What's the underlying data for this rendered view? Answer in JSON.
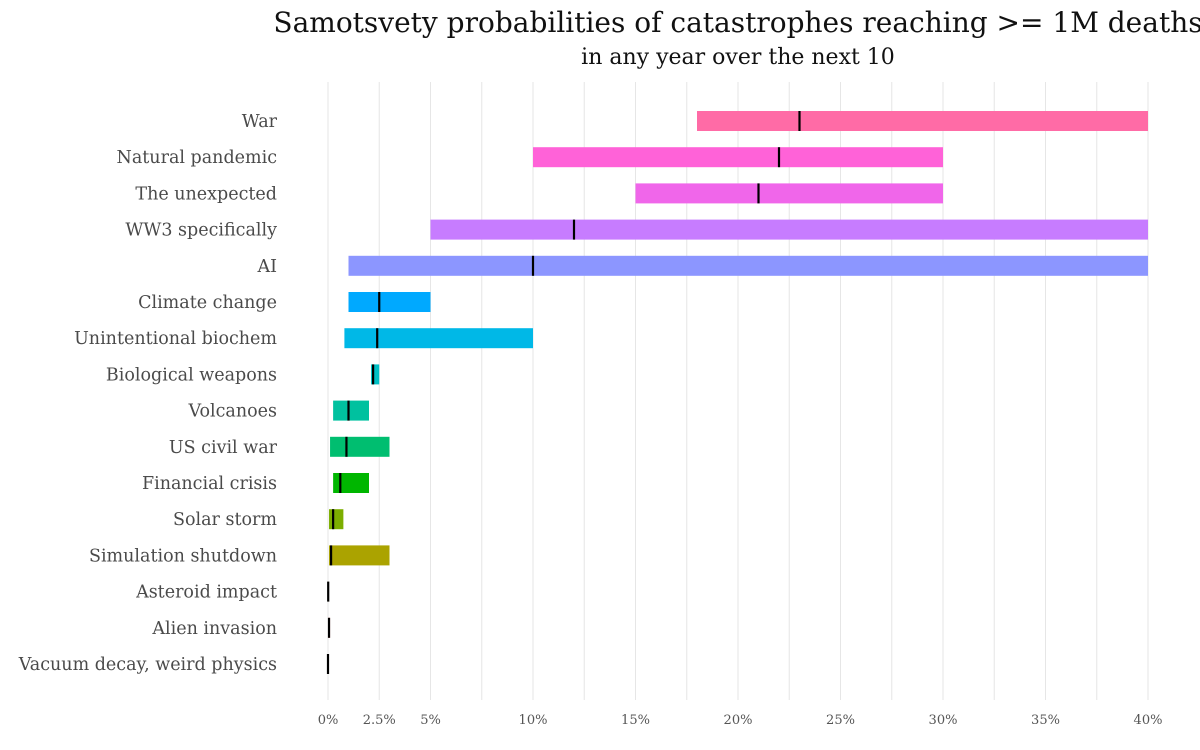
{
  "chart_data": {
    "type": "bar",
    "title": "Samotsvety probabilities of catastrophes reaching >= 1M deaths",
    "subtitle": "in any year over the next 10",
    "xlabel": "",
    "ylabel": "",
    "xlim": [
      0,
      40
    ],
    "grid": true,
    "x_ticks": [
      {
        "value": 0,
        "label": "0%"
      },
      {
        "value": 2.5,
        "label": "2.5%"
      },
      {
        "value": 5,
        "label": "5%"
      },
      {
        "value": 10,
        "label": "10%"
      },
      {
        "value": 15,
        "label": "15%"
      },
      {
        "value": 20,
        "label": "20%"
      },
      {
        "value": 25,
        "label": "25%"
      },
      {
        "value": 30,
        "label": "30%"
      },
      {
        "value": 35,
        "label": "35%"
      },
      {
        "value": 40,
        "label": "40%"
      }
    ],
    "minor_gridlines": [
      7.5,
      12.5,
      17.5,
      22.5,
      27.5,
      32.5,
      37.5
    ],
    "categories": [
      {
        "label": "War",
        "low": 18,
        "high": 40,
        "median": 23,
        "color": "#ff6ba6"
      },
      {
        "label": "Natural pandemic",
        "low": 10,
        "high": 30,
        "median": 22,
        "color": "#ff62d8"
      },
      {
        "label": "The unexpected",
        "low": 15,
        "high": 30,
        "median": 21,
        "color": "#f066ea"
      },
      {
        "label": "WW3 specifically",
        "low": 5,
        "high": 40,
        "median": 12,
        "color": "#c77cff"
      },
      {
        "label": "AI",
        "low": 1,
        "high": 40,
        "median": 10,
        "color": "#8c96ff"
      },
      {
        "label": "Climate change",
        "low": 1,
        "high": 5,
        "median": 2.5,
        "color": "#00a9ff"
      },
      {
        "label": "Unintentional biochem",
        "low": 0.8,
        "high": 10,
        "median": 2.4,
        "color": "#00b8e7"
      },
      {
        "label": "Biological weapons",
        "low": 2.1,
        "high": 2.5,
        "median": 2.2,
        "color": "#00bfc4"
      },
      {
        "label": "Volcanoes",
        "low": 0.25,
        "high": 2,
        "median": 1,
        "color": "#00c19f"
      },
      {
        "label": "US civil war",
        "low": 0.1,
        "high": 3,
        "median": 0.9,
        "color": "#00be70"
      },
      {
        "label": "Financial crisis",
        "low": 0.25,
        "high": 2,
        "median": 0.6,
        "color": "#00b600"
      },
      {
        "label": "Solar storm",
        "low": 0.05,
        "high": 0.75,
        "median": 0.25,
        "color": "#7cae00"
      },
      {
        "label": "Simulation shutdown",
        "low": 0.05,
        "high": 3,
        "median": 0.15,
        "color": "#aba300"
      },
      {
        "label": "Asteroid impact",
        "low": 0,
        "high": 0.02,
        "median": 0.01,
        "color": "#cd9600"
      },
      {
        "label": "Alien invasion",
        "low": 0,
        "high": 0.1,
        "median": 0.05,
        "color": "#f8766d"
      },
      {
        "label": "Vacuum decay, weird physics",
        "low": 0,
        "high": 0.01,
        "median": 0,
        "color": "#e58700"
      }
    ]
  }
}
